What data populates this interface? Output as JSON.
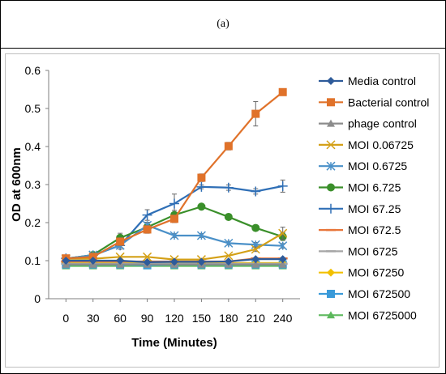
{
  "panel": {
    "label": "(a)"
  },
  "chart_data": {
    "type": "line",
    "title": "",
    "xlabel": "Time (Minutes)",
    "ylabel": "OD at 600nm",
    "x": [
      0,
      30,
      60,
      90,
      120,
      150,
      180,
      210,
      240
    ],
    "ylim": [
      0,
      0.6
    ],
    "yticks": [
      "0",
      "0.1",
      "0.2",
      "0.3",
      "0.4",
      "0.5",
      "0.6"
    ],
    "legend_position": "right",
    "grid": false,
    "series": [
      {
        "name": "Media control",
        "color": "#2E5B9A",
        "marker": "diamond",
        "values": [
          0.1,
          0.1,
          0.1,
          0.096,
          0.097,
          0.097,
          0.098,
          0.104,
          0.104
        ]
      },
      {
        "name": "Bacterial control",
        "color": "#E0722A",
        "marker": "square",
        "values": [
          0.106,
          0.11,
          0.15,
          0.182,
          0.21,
          0.318,
          0.401,
          0.486,
          0.543
        ],
        "errors": [
          0,
          0,
          0.01,
          0.01,
          0.01,
          0.01,
          0.01,
          0.032,
          0.005
        ]
      },
      {
        "name": "phage control",
        "color": "#8C8C8C",
        "marker": "triangle",
        "values": [
          0.09,
          0.09,
          0.09,
          0.09,
          0.09,
          0.09,
          0.09,
          0.09,
          0.09
        ]
      },
      {
        "name": "MOI 0.06725",
        "color": "#D4A017",
        "marker": "x",
        "values": [
          0.105,
          0.105,
          0.11,
          0.11,
          0.103,
          0.103,
          0.113,
          0.13,
          0.172
        ],
        "errors": [
          0,
          0,
          0,
          0,
          0,
          0,
          0,
          0.006,
          0.016
        ]
      },
      {
        "name": "MOI 0.6725",
        "color": "#4A90C8",
        "marker": "star",
        "values": [
          0.105,
          0.115,
          0.14,
          0.193,
          0.166,
          0.166,
          0.146,
          0.142,
          0.139
        ],
        "errors": [
          0,
          0,
          0.006,
          0.008,
          0.005,
          0.005,
          0.005,
          0.006,
          0.006
        ]
      },
      {
        "name": "MOI 6.725",
        "color": "#3A8F2A",
        "marker": "circle",
        "values": [
          0.105,
          0.115,
          0.16,
          0.188,
          0.22,
          0.242,
          0.215,
          0.186,
          0.163
        ],
        "errors": [
          0,
          0,
          0.012,
          0.01,
          0.012,
          0.005,
          0.005,
          0.005,
          0.01
        ]
      },
      {
        "name": "MOI 67.25",
        "color": "#2F6FB6",
        "marker": "plus",
        "values": [
          0.106,
          0.114,
          0.14,
          0.22,
          0.25,
          0.294,
          0.292,
          0.282,
          0.296
        ],
        "errors": [
          0,
          0,
          0.01,
          0.014,
          0.025,
          0.005,
          0.007,
          0.007,
          0.016
        ]
      },
      {
        "name": "MOI 672.5",
        "color": "#E8763A",
        "marker": "dash",
        "values": [
          0.098,
          0.098,
          0.098,
          0.098,
          0.098,
          0.098,
          0.098,
          0.106,
          0.106
        ]
      },
      {
        "name": "MOI 6725",
        "color": "#A6A6A6",
        "marker": "dash",
        "values": [
          0.092,
          0.092,
          0.092,
          0.092,
          0.092,
          0.092,
          0.092,
          0.092,
          0.092
        ]
      },
      {
        "name": "MOI 67250",
        "color": "#F2C000",
        "marker": "diamond",
        "values": [
          0.094,
          0.094,
          0.094,
          0.094,
          0.094,
          0.094,
          0.094,
          0.094,
          0.094
        ]
      },
      {
        "name": "MOI 672500",
        "color": "#3A9AD9",
        "marker": "square",
        "values": [
          0.09,
          0.09,
          0.09,
          0.088,
          0.09,
          0.09,
          0.09,
          0.09,
          0.09
        ]
      },
      {
        "name": "MOI 6725000",
        "color": "#5CB85C",
        "marker": "triangle",
        "values": [
          0.086,
          0.086,
          0.086,
          0.086,
          0.086,
          0.086,
          0.086,
          0.086,
          0.086
        ]
      }
    ]
  }
}
